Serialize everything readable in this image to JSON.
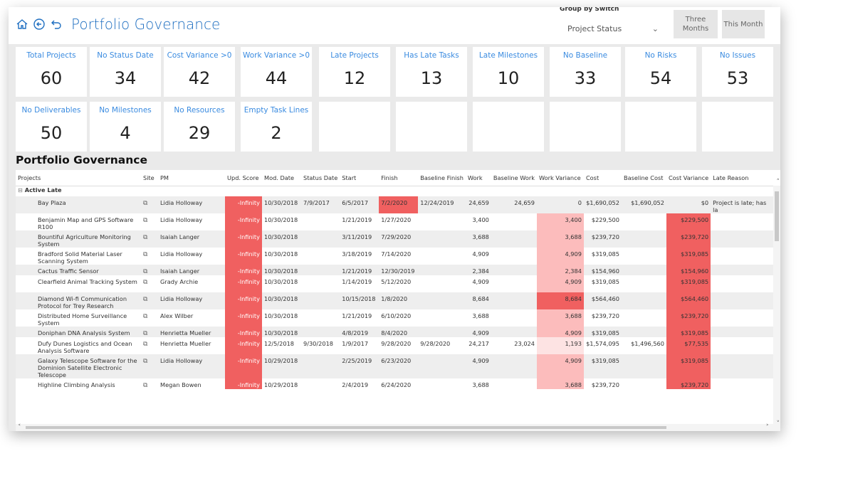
{
  "header": {
    "title": "Portfolio Governance",
    "group_by_label": "Group by Switch",
    "group_by_value": "Project Status",
    "btn_three_months": "Three Months",
    "btn_this_month": "This Month"
  },
  "kpis_row1": [
    {
      "label": "Total Projects",
      "value": "60"
    },
    {
      "label": "No Status Date",
      "value": "34"
    },
    {
      "label": "Cost Variance >0",
      "value": "42"
    },
    {
      "label": "Work Variance >0",
      "value": "44"
    },
    {
      "label": "Late Projects",
      "value": "12"
    },
    {
      "label": "Has Late Tasks",
      "value": "13"
    },
    {
      "label": "Late Milestones",
      "value": "10"
    },
    {
      "label": "No Baseline",
      "value": "33"
    },
    {
      "label": "No Risks",
      "value": "54"
    },
    {
      "label": "No Issues",
      "value": "53"
    }
  ],
  "kpis_row2": [
    {
      "label": "No Deliverables",
      "value": "50"
    },
    {
      "label": "No Milestones",
      "value": "4"
    },
    {
      "label": "No Resources",
      "value": "29"
    },
    {
      "label": "Empty Task Lines",
      "value": "2"
    }
  ],
  "section_title": "Portfolio Governance",
  "table": {
    "columns": [
      "Projects",
      "Site",
      "PM",
      "Upd. Score",
      "Mod. Date",
      "Status Date",
      "Start",
      "Finish",
      "Baseline Finish",
      "Work",
      "Baseline Work",
      "Work Variance",
      "Cost",
      "Baseline Cost",
      "Cost Variance",
      "Late Reason"
    ],
    "group_label": "Active Late",
    "rows": [
      {
        "project": "Bay Plaza",
        "pm": "Lidia Holloway",
        "score": "-Infinity",
        "mod": "10/30/2018",
        "status": "7/9/2017",
        "start": "6/5/2017",
        "finish": "7/2/2020",
        "bfinish": "12/24/2019",
        "work": "24,659",
        "bwork": "24,659",
        "wvar": "0",
        "cost": "$1,690,052",
        "bcost": "$1,690,052",
        "cvar": "$0",
        "late": "Project is late; has la"
      },
      {
        "project": "Benjamin Map and GPS Software R100",
        "pm": "Lidia Holloway",
        "score": "-Infinity",
        "mod": "10/30/2018",
        "status": "",
        "start": "1/21/2019",
        "finish": "1/27/2020",
        "bfinish": "",
        "work": "3,400",
        "bwork": "",
        "wvar": "3,400",
        "cost": "$229,500",
        "bcost": "",
        "cvar": "$229,500",
        "late": ""
      },
      {
        "project": "Bountiful Agriculture Monitoring System",
        "pm": "Isaiah Langer",
        "score": "-Infinity",
        "mod": "10/30/2018",
        "status": "",
        "start": "3/11/2019",
        "finish": "7/29/2020",
        "bfinish": "",
        "work": "3,688",
        "bwork": "",
        "wvar": "3,688",
        "cost": "$239,720",
        "bcost": "",
        "cvar": "$239,720",
        "late": ""
      },
      {
        "project": "Bradford Solid Material Laser Scanning System",
        "pm": "Lidia Holloway",
        "score": "-Infinity",
        "mod": "10/30/2018",
        "status": "",
        "start": "3/18/2019",
        "finish": "7/14/2020",
        "bfinish": "",
        "work": "4,909",
        "bwork": "",
        "wvar": "4,909",
        "cost": "$319,085",
        "bcost": "",
        "cvar": "$319,085",
        "late": ""
      },
      {
        "project": "Cactus Traffic Sensor",
        "pm": "Isaiah Langer",
        "score": "-Infinity",
        "mod": "10/30/2018",
        "status": "",
        "start": "1/21/2019",
        "finish": "12/30/2019",
        "bfinish": "",
        "work": "2,384",
        "bwork": "",
        "wvar": "2,384",
        "cost": "$154,960",
        "bcost": "",
        "cvar": "$154,960",
        "late": ""
      },
      {
        "project": "Clearfield Animal Tracking System",
        "pm": "Grady Archie",
        "score": "-Infinity",
        "mod": "10/30/2018",
        "status": "",
        "start": "1/14/2019",
        "finish": "5/12/2020",
        "bfinish": "",
        "work": "4,909",
        "bwork": "",
        "wvar": "4,909",
        "cost": "$319,085",
        "bcost": "",
        "cvar": "$319,085",
        "late": ""
      },
      {
        "project": "Diamond Wi-fi Communication Protocol for Trey Research",
        "pm": "Lidia Holloway",
        "score": "-Infinity",
        "mod": "10/30/2018",
        "status": "",
        "start": "10/15/2018",
        "finish": "1/8/2020",
        "bfinish": "",
        "work": "8,684",
        "bwork": "",
        "wvar": "8,684",
        "cost": "$564,460",
        "bcost": "",
        "cvar": "$564,460",
        "late": ""
      },
      {
        "project": "Distributed Home Surveillance System",
        "pm": "Alex Wilber",
        "score": "-Infinity",
        "mod": "10/30/2018",
        "status": "",
        "start": "1/21/2019",
        "finish": "6/10/2020",
        "bfinish": "",
        "work": "3,688",
        "bwork": "",
        "wvar": "3,688",
        "cost": "$239,720",
        "bcost": "",
        "cvar": "$239,720",
        "late": ""
      },
      {
        "project": "Doniphan DNA Analysis System",
        "pm": "Henrietta Mueller",
        "score": "-Infinity",
        "mod": "10/30/2018",
        "status": "",
        "start": "4/8/2019",
        "finish": "8/4/2020",
        "bfinish": "",
        "work": "4,909",
        "bwork": "",
        "wvar": "4,909",
        "cost": "$319,085",
        "bcost": "",
        "cvar": "$319,085",
        "late": ""
      },
      {
        "project": "Dufy Dunes Logistics and Ocean Analysis Software",
        "pm": "Henrietta Mueller",
        "score": "-Infinity",
        "mod": "12/5/2018",
        "status": "9/30/2018",
        "start": "1/9/2017",
        "finish": "9/28/2020",
        "bfinish": "9/28/2020",
        "work": "24,217",
        "bwork": "23,024",
        "wvar": "1,193",
        "cost": "$1,574,095",
        "bcost": "$1,496,560",
        "cvar": "$77,535",
        "late": ""
      },
      {
        "project": "Galaxy Telescope Software for the Dominion Satellite Electronic Telescope",
        "pm": "Lidia Holloway",
        "score": "-Infinity",
        "mod": "10/29/2018",
        "status": "",
        "start": "2/25/2019",
        "finish": "6/23/2020",
        "bfinish": "",
        "work": "4,909",
        "bwork": "",
        "wvar": "4,909",
        "cost": "$319,085",
        "bcost": "",
        "cvar": "$319,085",
        "late": ""
      },
      {
        "project": "Highline Climbing Analysis",
        "pm": "Megan Bowen",
        "score": "-Infinity",
        "mod": "10/29/2018",
        "status": "",
        "start": "2/4/2019",
        "finish": "6/24/2020",
        "bfinish": "",
        "work": "3,688",
        "bwork": "",
        "wvar": "3,688",
        "cost": "$239,720",
        "bcost": "",
        "cvar": "$239,720",
        "late": ""
      }
    ]
  },
  "colors": {
    "accent": "#1f6fc1",
    "kpi_label": "#3a8be0",
    "heat_strong": "#f06060",
    "heat_mid": "#fcbcbc",
    "heat_light": "#fde3e3"
  },
  "icons": [
    "home-icon",
    "back-circle-icon",
    "undo-icon",
    "chevron-down-icon",
    "link-icon",
    "collapse-icon",
    "scroll-up-icon",
    "scroll-down-icon",
    "scroll-left-icon",
    "scroll-right-icon"
  ]
}
